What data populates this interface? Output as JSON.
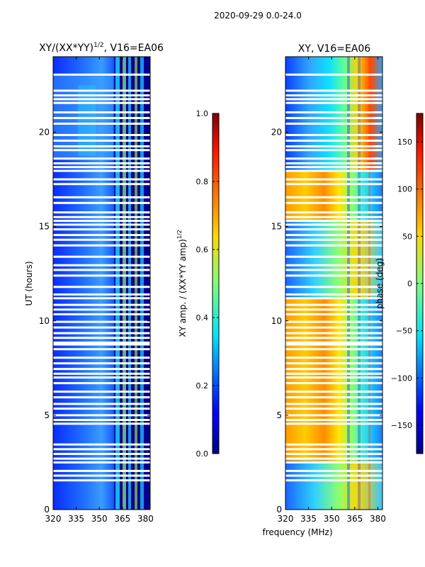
{
  "suptitle": "2020-09-29 0.0-24.0",
  "xlabel_shared": "frequency (MHz)",
  "chart_data": [
    {
      "type": "heatmap",
      "title": "XY/(XX*YY)",
      "title_sup": "1/2",
      "title_suffix": ", V16=EA06",
      "xlabel": "",
      "ylabel": "UT (hours)",
      "xlim": [
        320,
        383
      ],
      "ylim": [
        0,
        24
      ],
      "xticks": [
        320,
        335,
        350,
        365,
        380
      ],
      "yticks": [
        0,
        5,
        10,
        15,
        20
      ],
      "colorbar": {
        "label": "XY amp. / (XX*YY amp)",
        "label_sup": "1/2",
        "range": [
          0.0,
          1.0
        ],
        "ticks": [
          0.0,
          0.2,
          0.4,
          0.6,
          0.8,
          1.0
        ],
        "tick_labels": [
          "0.0",
          "0.2",
          "0.4",
          "0.6",
          "0.8",
          "1.0"
        ],
        "colormap": "jet"
      }
    },
    {
      "type": "heatmap",
      "title": "XY, V16=EA06",
      "xlabel": "",
      "ylabel": "",
      "xlim": [
        320,
        383
      ],
      "ylim": [
        0,
        24
      ],
      "xticks": [
        320,
        335,
        350,
        365,
        380
      ],
      "yticks": [
        0,
        5,
        10,
        15,
        20
      ],
      "colorbar": {
        "label": "phase (deg)",
        "range": [
          -180,
          180
        ],
        "ticks": [
          -150,
          -100,
          -50,
          0,
          50,
          100,
          150
        ],
        "tick_labels": [
          "−150",
          "−100",
          "−50",
          "0",
          "50",
          "100",
          "150"
        ],
        "colormap": "jet"
      }
    }
  ],
  "flagged_rows_ut": [
    23.05,
    22.2,
    21.95,
    21.75,
    21.55,
    21.05,
    20.75,
    20.45,
    19.85,
    19.55,
    19.25,
    19.05,
    18.6,
    18.35,
    18.15,
    17.95,
    17.5,
    17.25,
    16.55,
    16.25,
    15.75,
    15.5,
    15.3,
    15.1,
    14.85,
    14.55,
    14.3,
    14.0,
    13.4,
    12.95,
    12.7,
    12.4,
    11.8,
    11.4,
    11.2,
    10.85,
    10.6,
    10.35,
    9.95,
    9.65,
    9.35,
    9.1,
    8.85,
    8.75,
    8.5,
    8.05,
    7.75,
    7.45,
    7.2,
    7.0,
    6.7,
    6.25,
    5.95,
    5.6,
    5.35,
    5.0,
    4.75,
    4.55,
    3.45,
    3.2,
    2.95,
    2.7,
    2.5,
    2.05,
    1.8,
    1.55
  ]
}
